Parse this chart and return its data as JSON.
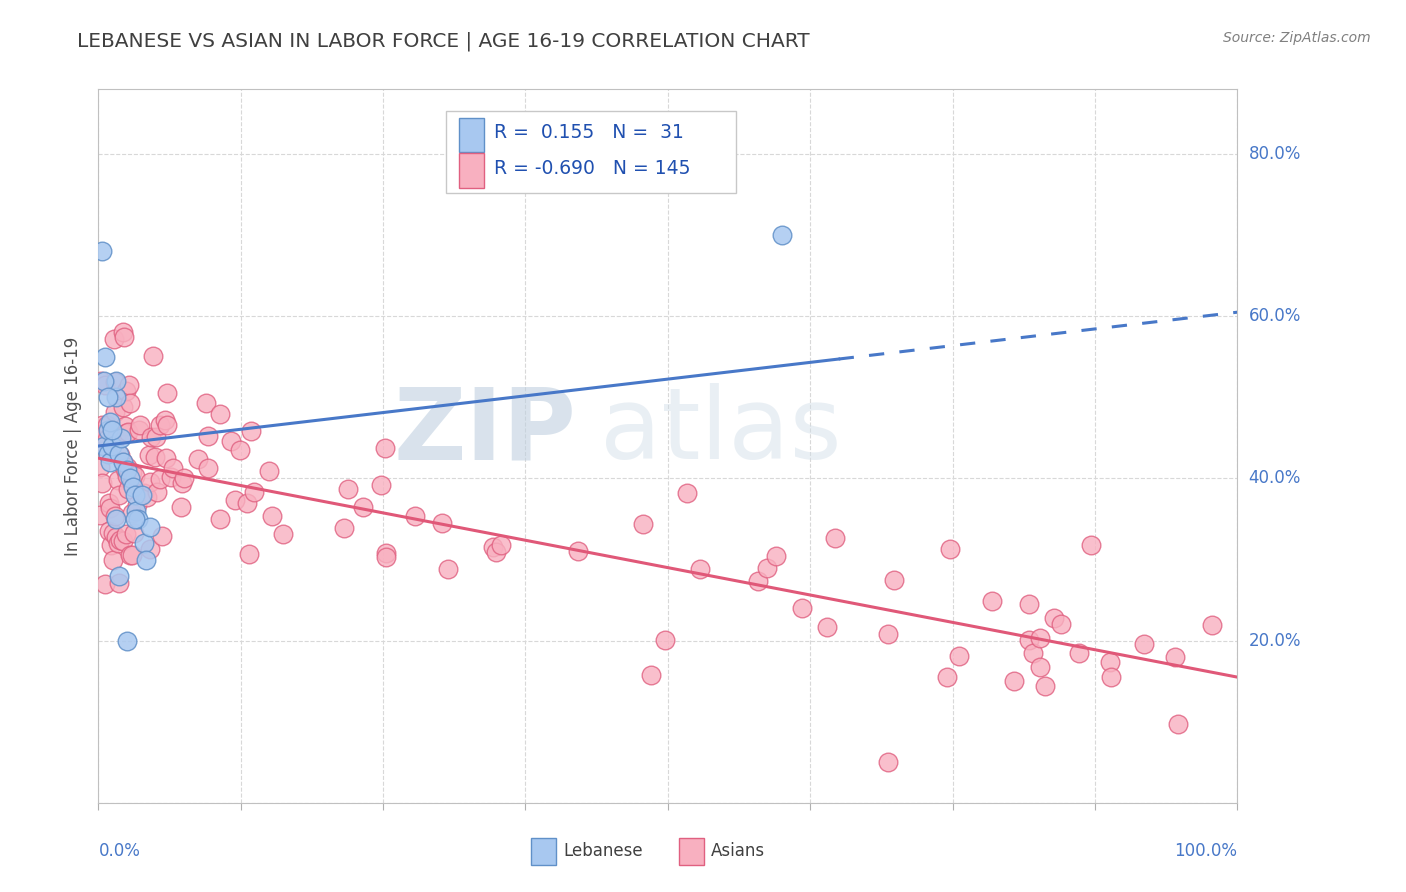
{
  "title": "LEBANESE VS ASIAN IN LABOR FORCE | AGE 16-19 CORRELATION CHART",
  "source_text": "Source: ZipAtlas.com",
  "ylabel": "In Labor Force | Age 16-19",
  "watermark_zip": "ZIP",
  "watermark_atlas": "atlas",
  "lebanese_color": "#a8c8f0",
  "lebanese_edge": "#6090c8",
  "asian_color": "#f8b0c0",
  "asian_edge": "#e06080",
  "lebanese_line_color": "#4878c8",
  "asian_line_color": "#e05878",
  "background_color": "#ffffff",
  "grid_color": "#d8d8d8",
  "title_color": "#404040",
  "legend_text_color": "#2050b0",
  "ytick_color": "#4878c8",
  "xtick_color": "#4878c8",
  "lebanese_r": 0.155,
  "lebanese_n": 31,
  "asian_r": -0.69,
  "asian_n": 145,
  "leb_line_x0": 0.0,
  "leb_line_y0": 0.44,
  "leb_line_x1": 1.0,
  "leb_line_y1": 0.605,
  "asian_line_x0": 0.0,
  "asian_line_y0": 0.425,
  "asian_line_x1": 1.0,
  "asian_line_y1": 0.155,
  "xlim": [
    0.0,
    1.0
  ],
  "ylim": [
    0.0,
    0.88
  ],
  "yticks": [
    0.0,
    0.2,
    0.4,
    0.6,
    0.8
  ],
  "ytick_labels": [
    "",
    "20.0%",
    "40.0%",
    "60.0%",
    "80.0%"
  ]
}
